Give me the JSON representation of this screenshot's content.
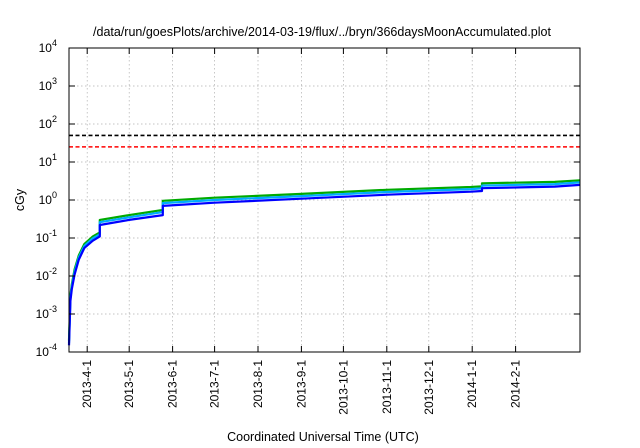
{
  "chart_data": {
    "type": "line",
    "title": "/data/run/goesPlots/archive/2014-03-19/flux/../bryn/366daysMoonAccumulated.plot",
    "xlabel": "Coordinated Universal Time (UTC)",
    "ylabel": "cGy",
    "y_scale": "log",
    "ylim": [
      0.0001,
      10000
    ],
    "xlim": [
      "2013-03-19",
      "2014-03-19"
    ],
    "grid": true,
    "x_ticks": [
      "2013-4-1",
      "2013-5-1",
      "2013-6-1",
      "2013-7-1",
      "2013-8-1",
      "2013-9-1",
      "2013-10-1",
      "2013-11-1",
      "2013-12-1",
      "2014-1-1",
      "2014-2-1"
    ],
    "y_ticks": [
      {
        "base": "10",
        "exp": "-4",
        "value": 0.0001
      },
      {
        "base": "10",
        "exp": "-3",
        "value": 0.001
      },
      {
        "base": "10",
        "exp": "-2",
        "value": 0.01
      },
      {
        "base": "10",
        "exp": "-1",
        "value": 0.1
      },
      {
        "base": "10",
        "exp": "0",
        "value": 1
      },
      {
        "base": "10",
        "exp": "1",
        "value": 10
      },
      {
        "base": "10",
        "exp": "2",
        "value": 100
      },
      {
        "base": "10",
        "exp": "3",
        "value": 1000
      },
      {
        "base": "10",
        "exp": "4",
        "value": 10000
      }
    ],
    "thresholds": [
      {
        "value": 50,
        "color": "#000000",
        "style": "dashed"
      },
      {
        "value": 25,
        "color": "#ff0000",
        "style": "dashed"
      }
    ],
    "series": [
      {
        "color": "#00aa00",
        "x": [
          "2013-03-19",
          "2013-03-20",
          "2013-03-21",
          "2013-03-23",
          "2013-03-26",
          "2013-03-30",
          "2013-04-05",
          "2013-04-10",
          "2013-04-10",
          "2013-05-01",
          "2013-05-25",
          "2013-05-25",
          "2013-07-01",
          "2013-09-01",
          "2013-11-01",
          "2013-12-31",
          "2014-01-08",
          "2014-01-08",
          "2014-03-01",
          "2014-03-19"
        ],
        "values": [
          0.0002,
          0.003,
          0.006,
          0.015,
          0.035,
          0.07,
          0.11,
          0.14,
          0.3,
          0.4,
          0.55,
          0.95,
          1.15,
          1.45,
          1.85,
          2.2,
          2.3,
          2.75,
          3.0,
          3.3
        ]
      },
      {
        "color": "#00aaff",
        "x": [
          "2013-03-19",
          "2013-03-20",
          "2013-03-21",
          "2013-03-23",
          "2013-03-26",
          "2013-03-30",
          "2013-04-05",
          "2013-04-10",
          "2013-04-10",
          "2013-05-01",
          "2013-05-25",
          "2013-05-25",
          "2013-07-01",
          "2013-09-01",
          "2013-11-01",
          "2013-12-31",
          "2014-01-08",
          "2014-01-08",
          "2014-03-01",
          "2014-03-19"
        ],
        "values": [
          0.00017,
          0.0026,
          0.0052,
          0.013,
          0.031,
          0.062,
          0.098,
          0.125,
          0.26,
          0.35,
          0.48,
          0.83,
          1.0,
          1.27,
          1.62,
          1.93,
          2.02,
          2.4,
          2.62,
          2.9
        ]
      },
      {
        "color": "#0000ff",
        "x": [
          "2013-03-19",
          "2013-03-20",
          "2013-03-21",
          "2013-03-23",
          "2013-03-26",
          "2013-03-30",
          "2013-04-05",
          "2013-04-10",
          "2013-04-10",
          "2013-05-01",
          "2013-05-25",
          "2013-05-25",
          "2013-07-01",
          "2013-09-01",
          "2013-11-01",
          "2013-12-31",
          "2014-01-08",
          "2014-01-08",
          "2014-03-01",
          "2014-03-19"
        ],
        "values": [
          0.00015,
          0.0022,
          0.0045,
          0.011,
          0.027,
          0.055,
          0.085,
          0.11,
          0.22,
          0.3,
          0.4,
          0.7,
          0.85,
          1.08,
          1.38,
          1.65,
          1.72,
          2.05,
          2.25,
          2.5
        ]
      }
    ]
  }
}
